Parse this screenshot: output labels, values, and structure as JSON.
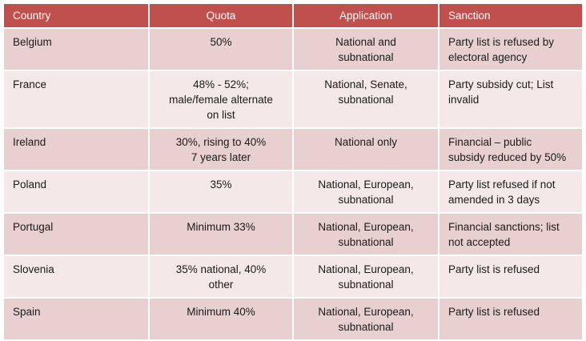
{
  "table": {
    "headers": [
      "Country",
      "Quota",
      "Application",
      "Sanction"
    ],
    "rows": [
      {
        "country": "Belgium",
        "quota": [
          "50%"
        ],
        "application": [
          "National and",
          "subnational"
        ],
        "sanction": [
          "Party list is refused by",
          "electoral agency"
        ]
      },
      {
        "country": "France",
        "quota": [
          "48% - 52%;",
          "male/female alternate",
          "on list"
        ],
        "application": [
          "National, Senate,",
          "subnational"
        ],
        "sanction": [
          "Party subsidy cut;  List",
          "invalid"
        ]
      },
      {
        "country": "Ireland",
        "quota": [
          "30%, rising to 40%",
          "7 years later"
        ],
        "application": [
          "National only"
        ],
        "sanction": [
          "Financial – public",
          "subsidy reduced by 50%"
        ]
      },
      {
        "country": "Poland",
        "quota": [
          "35%"
        ],
        "application": [
          "National, European,",
          "subnational"
        ],
        "sanction": [
          "Party list refused if not",
          "amended in 3 days"
        ]
      },
      {
        "country": "Portugal",
        "quota": [
          "Minimum 33%"
        ],
        "application": [
          "National, European,",
          "subnational"
        ],
        "sanction": [
          "Financial sanctions; list",
          "not accepted"
        ]
      },
      {
        "country": "Slovenia",
        "quota": [
          "35% national, 40%",
          "other"
        ],
        "application": [
          "National, European,",
          "subnational"
        ],
        "sanction": [
          "Party list is refused"
        ]
      },
      {
        "country": "Spain",
        "quota": [
          "Minimum 40%"
        ],
        "application": [
          "National, European,",
          "subnational"
        ],
        "sanction": [
          "Party list is refused"
        ]
      }
    ]
  },
  "colors": {
    "header_bg": "#c0504d",
    "row_odd_bg": "#e8d0d0",
    "row_even_bg": "#f4e8e8"
  }
}
